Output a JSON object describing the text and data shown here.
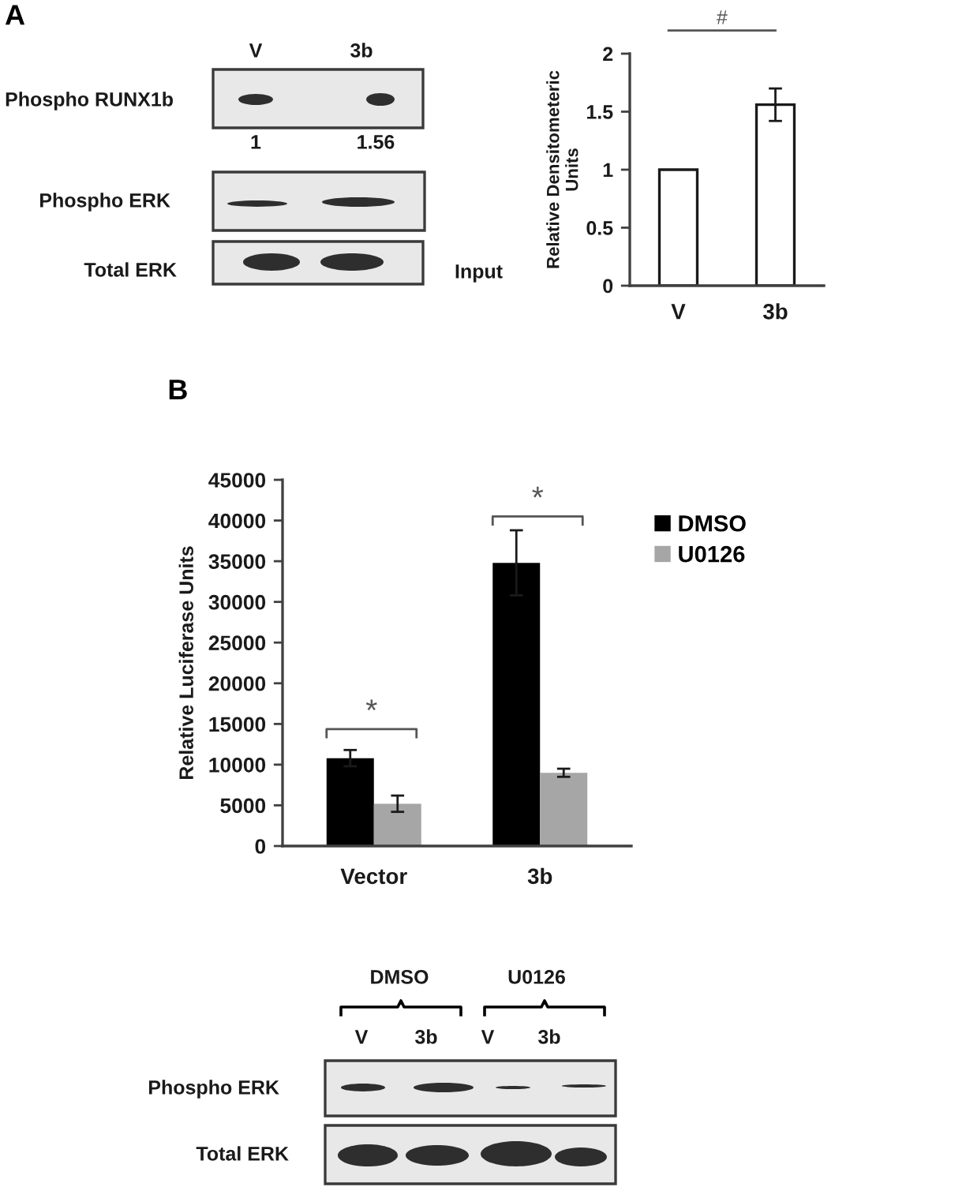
{
  "chart_data": [
    {
      "type": "other",
      "title": "A",
      "annotations": [
        "V",
        "3b",
        "Phospho RUNX1b",
        "1",
        "1.56",
        "Phospho ERK",
        "Total ERK",
        "Input"
      ]
    },
    {
      "type": "bar",
      "categories": [
        "V",
        "3b"
      ],
      "values": [
        1,
        1.56
      ],
      "errors": [
        null,
        0.14
      ],
      "color": "#ffffff",
      "ylabel": "Relative Densitometeric\nUnits",
      "ylim": [
        0,
        2
      ],
      "yticks": [
        0,
        0.5,
        1,
        1.5,
        2
      ],
      "annotations": [
        "#"
      ]
    },
    {
      "type": "bar",
      "title": "B",
      "categories": [
        "Vector",
        "3b"
      ],
      "series": [
        {
          "name": "DMSO",
          "color": "#000000",
          "values": [
            10800,
            34800
          ],
          "errors": [
            1000,
            4000
          ]
        },
        {
          "name": "U0126",
          "color": "#a6a6a6",
          "values": [
            5200,
            9000
          ],
          "errors": [
            1000,
            500
          ]
        }
      ],
      "ylabel": "Relative Luciferase Units",
      "ylim": [
        0,
        45000
      ],
      "yticks": [
        0,
        5000,
        10000,
        15000,
        20000,
        25000,
        30000,
        35000,
        40000,
        45000
      ],
      "legend": "top right",
      "annotations": [
        "*",
        "*"
      ]
    },
    {
      "type": "other",
      "annotations": [
        "DMSO",
        "U0126",
        "V",
        "3b",
        "V",
        "3b",
        "Phospho ERK",
        "Total ERK"
      ]
    }
  ]
}
